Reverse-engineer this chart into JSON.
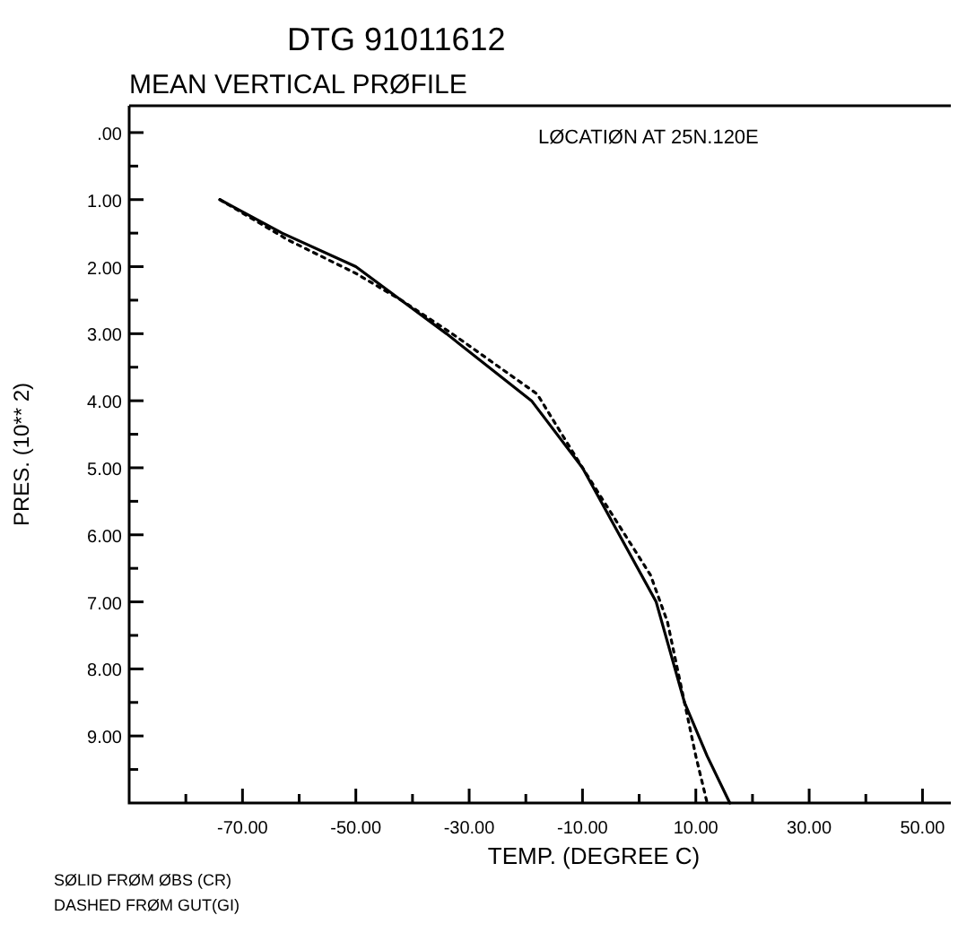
{
  "chart_data": {
    "type": "line",
    "title": "DTG    91011612",
    "subtitle": "MEAN VERTICAL PRØFILE",
    "xlabel": "TEMP. (DEGREE C)",
    "ylabel": "PRES. (10** 2)",
    "annotations": [
      "LØCATIØN AT    25N.120E",
      "SØLID FRØM ØBS (CR)",
      "DASHED FRØM GUT(GI)"
    ],
    "xlim": [
      -90,
      55
    ],
    "ylim": [
      10,
      -0.4
    ],
    "xticks": [
      {
        "value": -80,
        "label": null
      },
      {
        "value": -70,
        "label": "-70.00"
      },
      {
        "value": -60,
        "label": null
      },
      {
        "value": -50,
        "label": "-50.00"
      },
      {
        "value": -40,
        "label": null
      },
      {
        "value": -30,
        "label": "-30.00"
      },
      {
        "value": -20,
        "label": null
      },
      {
        "value": -10,
        "label": "-10.00"
      },
      {
        "value": 0,
        "label": null
      },
      {
        "value": 10,
        "label": "10.00"
      },
      {
        "value": 20,
        "label": null
      },
      {
        "value": 30,
        "label": "30.00"
      },
      {
        "value": 40,
        "label": null
      },
      {
        "value": 50,
        "label": "50.00"
      }
    ],
    "yticks": [
      {
        "value": 0,
        "label": ".00"
      },
      {
        "value": 0.5,
        "label": null
      },
      {
        "value": 1,
        "label": "1.00"
      },
      {
        "value": 1.5,
        "label": null
      },
      {
        "value": 2,
        "label": "2.00"
      },
      {
        "value": 2.5,
        "label": null
      },
      {
        "value": 3,
        "label": "3.00"
      },
      {
        "value": 3.5,
        "label": null
      },
      {
        "value": 4,
        "label": "4.00"
      },
      {
        "value": 4.5,
        "label": null
      },
      {
        "value": 5,
        "label": "5.00"
      },
      {
        "value": 5.5,
        "label": null
      },
      {
        "value": 6,
        "label": "6.00"
      },
      {
        "value": 6.5,
        "label": null
      },
      {
        "value": 7,
        "label": "7.00"
      },
      {
        "value": 7.5,
        "label": null
      },
      {
        "value": 8,
        "label": "8.00"
      },
      {
        "value": 8.5,
        "label": null
      },
      {
        "value": 9,
        "label": "9.00"
      },
      {
        "value": 9.5,
        "label": null
      }
    ],
    "marker": "none",
    "series": [
      {
        "color": "#000000",
        "line_style": "solid",
        "x": [
          -74,
          -63,
          -50,
          -42,
          -34,
          -19,
          -10,
          3,
          8,
          12,
          16
        ],
        "values": [
          1.0,
          1.5,
          2.0,
          2.5,
          3.0,
          4.0,
          5.0,
          7.0,
          8.5,
          9.3,
          10.0
        ]
      },
      {
        "color": "#000000",
        "line_style": "dotted",
        "x": [
          -74,
          -62,
          -50,
          -42,
          -33,
          -18,
          -10,
          2,
          5,
          8,
          10,
          12
        ],
        "values": [
          1.0,
          1.6,
          2.1,
          2.5,
          3.0,
          3.9,
          5.0,
          6.6,
          7.3,
          8.5,
          9.3,
          10.0
        ]
      }
    ]
  }
}
